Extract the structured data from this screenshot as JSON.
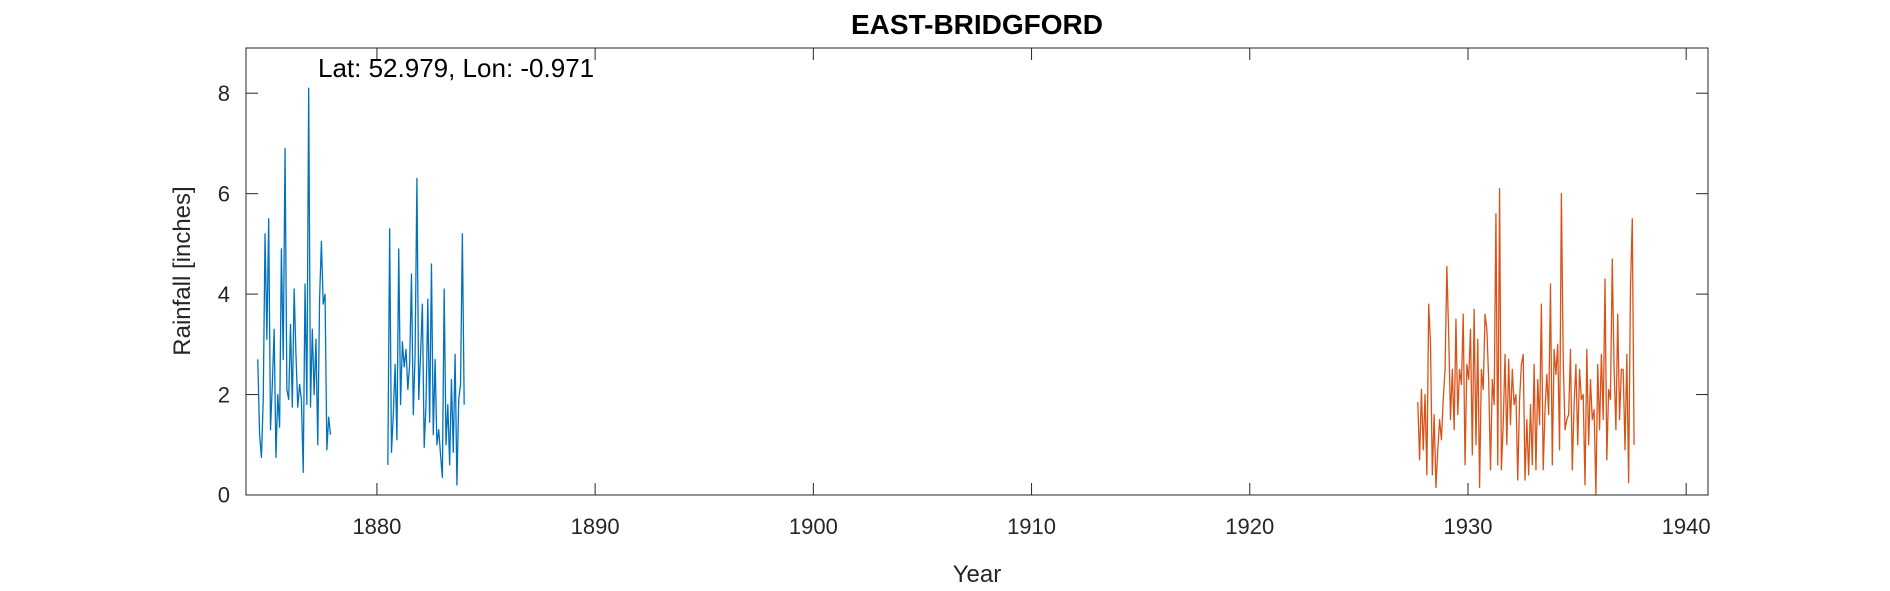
{
  "chart_data": {
    "type": "line",
    "title": "EAST-BRIDGFORD",
    "xlabel": "Year",
    "ylabel": "Rainfall [inches]",
    "annotation": "Lat: 52.979, Lon: -0.971",
    "xlim": [
      1874,
      1941
    ],
    "ylim": [
      0,
      8.9
    ],
    "xticks": [
      1880,
      1890,
      1900,
      1910,
      1920,
      1930,
      1940
    ],
    "yticks": [
      0,
      2,
      4,
      6,
      8
    ],
    "grid": false,
    "colors": {
      "series1": "#0072BD",
      "series2": "#D95319"
    },
    "series": [
      {
        "x_start": 1874.54,
        "x_step": 0.0833,
        "values": [
          2.7,
          1.2,
          0.75,
          1.9,
          5.2,
          3.1,
          5.5,
          1.3,
          2.2,
          3.3,
          0.75,
          2.0,
          1.35,
          4.9,
          2.7,
          6.9,
          2.1,
          1.9,
          3.4,
          1.75,
          4.1,
          2.8,
          1.75,
          2.2,
          1.9,
          0.45,
          4.2,
          1.8,
          8.1,
          1.75,
          3.3,
          2.0,
          3.1,
          1.0,
          3.9,
          5.05,
          3.8,
          4.0,
          0.9,
          1.55,
          1.2
        ],
        "segments": [
          {
            "x_start": 1880.5,
            "x_step": 0.0833,
            "values": [
              0.6,
              5.3,
              0.85,
              1.6,
              2.6,
              1.1,
              4.9,
              1.8,
              3.05,
              2.55,
              2.9,
              2.1,
              2.6,
              4.4,
              1.6,
              2.8,
              6.3,
              1.9,
              2.8,
              3.8,
              0.95,
              1.8,
              3.9,
              1.45,
              4.6,
              1.2,
              2.7,
              1.0,
              1.3,
              0.8,
              0.35,
              4.1,
              1.0,
              1.8,
              0.6,
              2.3,
              0.85,
              2.8,
              0.2,
              1.9,
              2.2,
              5.2,
              1.8
            ]
          }
        ]
      },
      {
        "x_start": 1927.7,
        "x_step": 0.0833,
        "values": [
          1.85,
          0.7,
          2.1,
          0.9,
          2.0,
          0.4,
          3.8,
          3.0,
          0.4,
          1.6,
          0.15,
          0.9,
          1.5,
          1.1,
          1.9,
          2.5,
          4.55,
          3.2,
          1.5,
          2.5,
          1.3,
          3.5,
          1.6,
          2.5,
          2.2,
          3.6,
          0.6,
          2.6,
          2.3,
          3.3,
          0.8,
          3.7,
          1.0,
          3.1,
          0.15,
          2.5,
          2.1,
          3.6,
          3.3,
          2.3,
          0.5,
          2.3,
          1.8,
          5.6,
          0.6,
          6.1,
          0.5,
          1.4,
          2.8,
          1.0,
          2.7,
          1.4,
          2.5,
          1.8,
          2.0,
          0.3,
          1.9,
          2.6,
          2.8,
          0.3,
          1.5,
          0.4,
          1.8,
          0.6,
          2.6,
          0.5,
          2.3,
          1.4,
          3.8,
          0.5,
          1.7,
          2.4,
          1.6,
          4.2,
          0.6,
          2.9,
          2.4,
          3.0,
          0.9,
          6.0,
          2.7,
          1.3,
          1.5,
          1.6,
          2.9,
          0.5,
          1.8,
          2.6,
          1.0,
          2.5,
          1.9,
          2.0,
          0.2,
          2.9,
          1.0,
          2.3,
          1.5,
          1.7,
          0.0,
          2.6,
          1.3,
          2.8,
          1.5,
          4.3,
          0.7,
          2.1,
          1.9,
          4.7,
          2.5,
          1.3,
          3.6,
          1.5,
          2.5,
          2.5,
          0.9,
          2.8,
          0.25,
          4.1,
          5.5,
          1.0
        ]
      }
    ]
  }
}
